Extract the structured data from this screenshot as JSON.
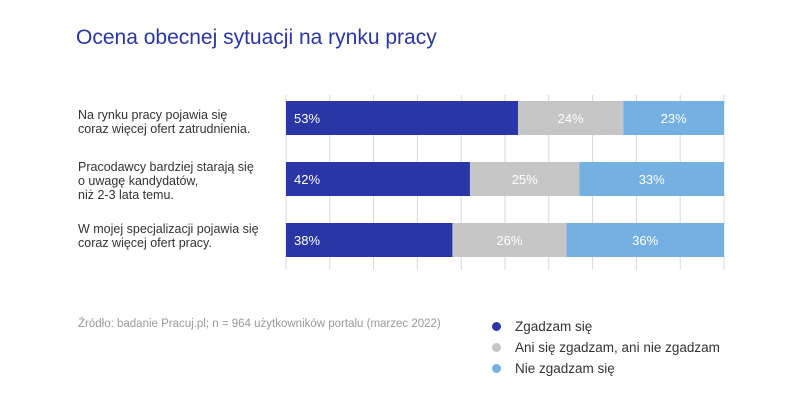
{
  "chart_data": {
    "type": "bar",
    "orientation": "horizontal",
    "stacked": true,
    "title": "Ocena obecnej sytuacji na rynku pracy",
    "categories": [
      "Na rynku pracy pojawia się\ncoraz więcej ofert zatrudnienia.",
      "Pracodawcy bardziej starają się\no uwagę kandydatów,\nniż 2-3 lata temu.",
      "W mojej specjalizacji pojawia się\ncoraz więcej ofert pracy."
    ],
    "series": [
      {
        "name": "Zgadzam się",
        "color": "#2a36a6",
        "label_color": "#ffffff",
        "values": [
          53,
          42,
          38
        ],
        "labels": [
          "53%",
          "42%",
          "38%"
        ]
      },
      {
        "name": "Ani się zgadzam, ani nie zgadzam",
        "color": "#c6c6c6",
        "label_color": "#ffffff",
        "values": [
          24,
          25,
          26
        ],
        "labels": [
          "24%",
          "25%",
          "26%"
        ]
      },
      {
        "name": "Nie zgadzam się",
        "color": "#74b1e2",
        "label_color": "#ffffff",
        "values": [
          23,
          33,
          36
        ],
        "labels": [
          "23%",
          "33%",
          "36%"
        ]
      }
    ],
    "xlim": [
      0,
      100
    ],
    "grid": true,
    "legend_position": "bottom-right",
    "source": "Źródło: badanie Pracuj.pl; n = 964 użytkowników portalu (marzec 2022)"
  }
}
